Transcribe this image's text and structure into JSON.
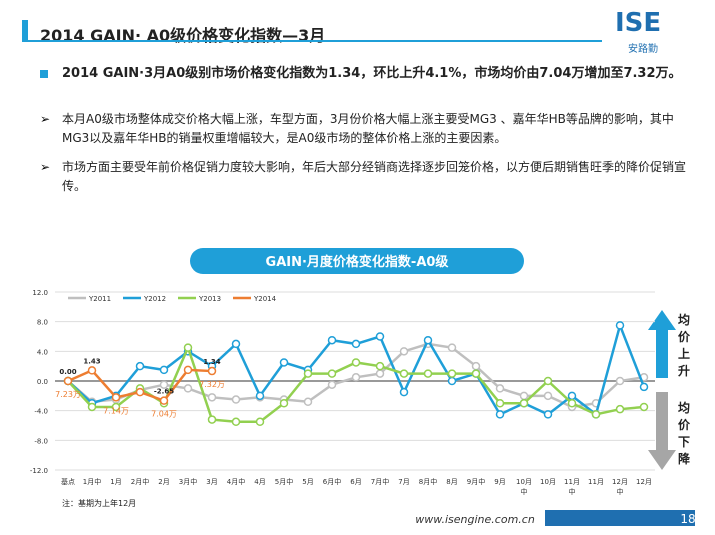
{
  "slide": {
    "title": "2014 GAIN· A0级价格变化指数—3月",
    "logo": "ISE",
    "logo_sub": "安路勤",
    "headline": "2014 GAIN·3月A0级别市场价格变化指数为1.34，环比上升4.1%，市场均价由7.04万增加至7.32万。",
    "bullets": [
      "本月A0级市场整体成交价格大幅上涨，车型方面，3月份价格大幅上涨主要受MG3 、嘉年华HB等品牌的影响，其中MG3以及嘉年华HB的销量权重增幅较大，是A0级市场的整体价格上涨的主要因素。",
      "市场方面主要受年前价格促销力度较大影响，年后大部分经销商选择逐步回笼价格，以方便后期销售旺季的降价促销宣传。"
    ],
    "note": "注：基期为上年12月",
    "footer": "www.isengine.com.cn",
    "page": "18",
    "up_label": "均价上升",
    "down_label": "均价下降"
  },
  "chart_data": {
    "type": "line",
    "title": "GAIN·月度价格变化指数-A0级",
    "categories": [
      "基点",
      "1月中",
      "1月",
      "2月中",
      "2月",
      "3月中",
      "3月",
      "4月中",
      "4月",
      "5月中",
      "5月",
      "6月中",
      "6月",
      "7月中",
      "7月",
      "8月中",
      "8月",
      "9月中",
      "9月",
      "10月中",
      "10月",
      "11月中",
      "11月",
      "12月中",
      "12月"
    ],
    "ylim": [
      -12,
      12
    ],
    "yticks": [
      {
        "value": -12,
        "label": "-12.0"
      },
      {
        "value": -8,
        "label": "-8.0"
      },
      {
        "value": -4,
        "label": "-4.0"
      },
      {
        "value": 0,
        "label": "0.0"
      },
      {
        "value": 4,
        "label": "4.0"
      },
      {
        "value": 8,
        "label": "8.0"
      },
      {
        "value": 12,
        "label": "12.0"
      }
    ],
    "grid": true,
    "series": [
      {
        "name": "Y2011",
        "color": "#bfbfbf",
        "values": [
          0,
          -2.8,
          -2.5,
          -1.2,
          -0.5,
          -1,
          -2.2,
          -2.5,
          -2.2,
          -2.5,
          -2.8,
          -0.5,
          0.5,
          1,
          4,
          5,
          4.5,
          2,
          -1,
          -2,
          -2,
          -3.5,
          -3,
          0,
          0.5
        ]
      },
      {
        "name": "Y2012",
        "color": "#1f9fd8",
        "values": [
          0,
          -3,
          -2,
          2,
          1.5,
          4,
          2,
          5,
          -2,
          2.5,
          1.5,
          5.5,
          5,
          6,
          -1.5,
          5.5,
          0,
          1,
          -4.5,
          -3,
          -4.5,
          -2,
          -4.5,
          7.5,
          -0.8
        ]
      },
      {
        "name": "Y2013",
        "color": "#92d050",
        "values": [
          0,
          -3.5,
          -3.5,
          -1,
          -3,
          4.5,
          -5.2,
          -5.5,
          -5.5,
          -3,
          1,
          1,
          2.5,
          2,
          1,
          1,
          1,
          1,
          -3,
          -3,
          0,
          -3,
          -4.5,
          -3.8,
          -3.5
        ]
      },
      {
        "name": "Y2014",
        "color": "#ed7d31",
        "values": [
          0,
          1.43,
          -2.2,
          -1.5,
          -2.65,
          1.5,
          1.34,
          null,
          null,
          null,
          null,
          null,
          null,
          null,
          null,
          null,
          null,
          null,
          null,
          null,
          null,
          null,
          null,
          null,
          null
        ],
        "value_labels": [
          "0.00",
          "1.43",
          null,
          null,
          "-2.65",
          null,
          "1.34",
          null,
          null,
          null,
          null,
          null,
          null,
          null,
          null,
          null,
          null,
          null,
          null,
          null,
          null,
          null,
          null,
          null,
          null
        ]
      }
    ],
    "annotations": [
      {
        "text": "7.23万",
        "index": 0
      },
      {
        "text": "7.14万",
        "index": 2
      },
      {
        "text": "7.04万",
        "index": 4
      },
      {
        "text": "7.32万",
        "index": 6
      }
    ]
  }
}
